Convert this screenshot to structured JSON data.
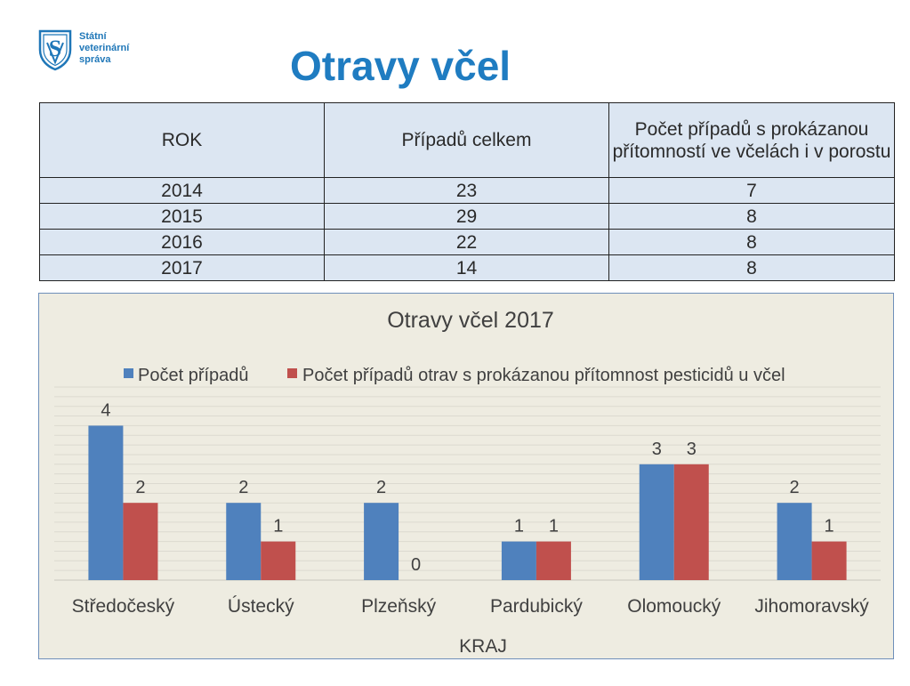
{
  "logo": {
    "line1": "Státní",
    "line2": "veterinární",
    "line3": "správa"
  },
  "page_title": "Otravy včel",
  "table": {
    "headers": [
      "ROK",
      "Případů celkem",
      "Počet případů s prokázanou přítomností ve včelách i v porostu"
    ],
    "rows": [
      [
        "2014",
        "23",
        "7"
      ],
      [
        "2015",
        "29",
        "8"
      ],
      [
        "2016",
        "22",
        "8"
      ],
      [
        "2017",
        "14",
        "8"
      ]
    ]
  },
  "chart_data": {
    "type": "bar",
    "title": "Otravy včel 2017",
    "xlabel": "KRAJ",
    "ylabel": "",
    "categories": [
      "Středočeský",
      "Ústecký",
      "Plzeňský",
      "Pardubický",
      "Olomoucký",
      "Jihomoravský"
    ],
    "series": [
      {
        "name": "Počet případů",
        "values": [
          4,
          2,
          2,
          1,
          3,
          2
        ],
        "color": "#4f81bd"
      },
      {
        "name": "Počet případů otrav s prokázanou přítomnost pesticidů u včel",
        "values": [
          2,
          1,
          0,
          1,
          3,
          1
        ],
        "color": "#c0504d"
      }
    ],
    "ylim": [
      0,
      5
    ],
    "grid": true,
    "legend": "top",
    "data_labels": true
  }
}
